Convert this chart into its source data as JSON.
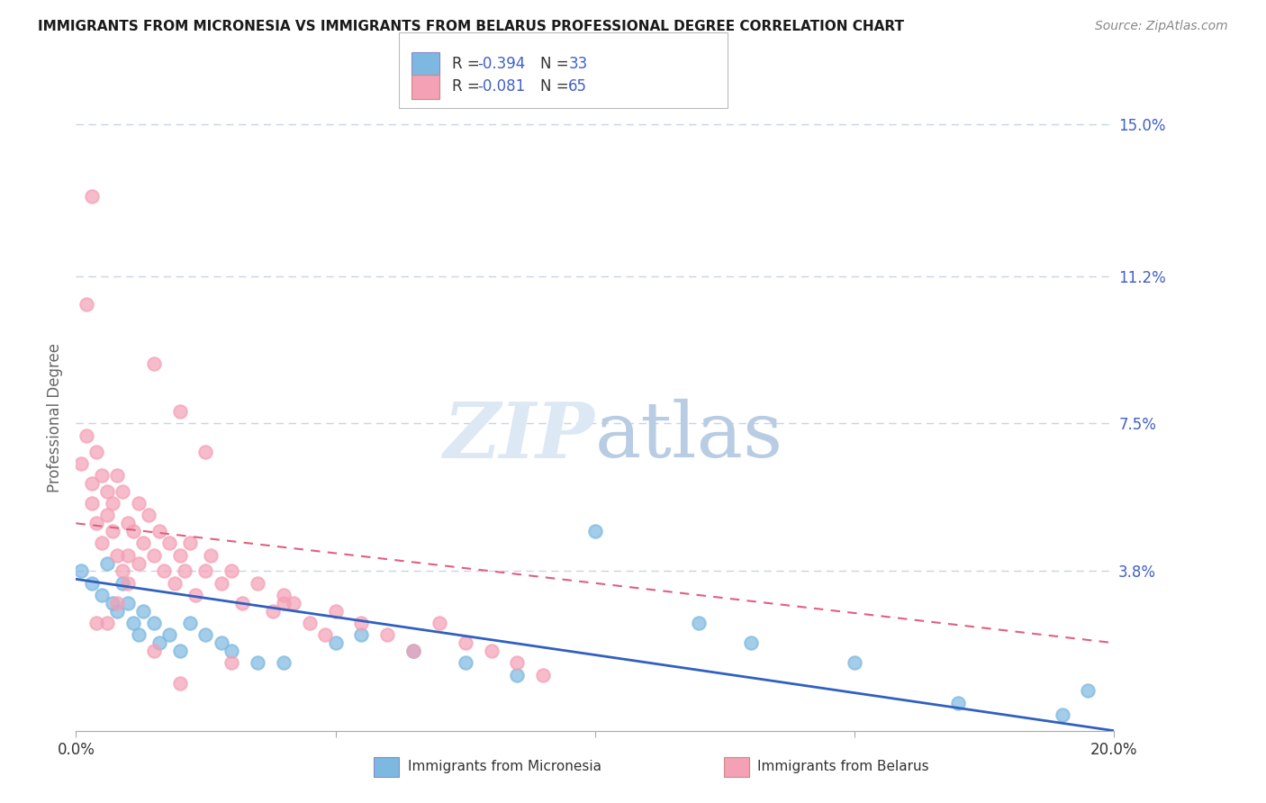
{
  "title": "IMMIGRANTS FROM MICRONESIA VS IMMIGRANTS FROM BELARUS PROFESSIONAL DEGREE CORRELATION CHART",
  "source": "Source: ZipAtlas.com",
  "ylabel": "Professional Degree",
  "legend_label1": "Immigrants from Micronesia",
  "legend_label2": "Immigrants from Belarus",
  "R1": -0.394,
  "N1": 33,
  "R2": -0.081,
  "N2": 65,
  "color1": "#7db8e0",
  "color2": "#f4a0b5",
  "trend_color1": "#3060c0",
  "trend_color2": "#e06080",
  "xmin": 0.0,
  "xmax": 0.2,
  "ymin": -0.002,
  "ymax": 0.155,
  "ytick_vals": [
    0.0,
    0.038,
    0.075,
    0.112,
    0.15
  ],
  "ytick_labels": [
    "",
    "3.8%",
    "7.5%",
    "11.2%",
    "15.0%"
  ],
  "xtick_vals": [
    0.0,
    0.2
  ],
  "xtick_labels": [
    "0.0%",
    "20.0%"
  ],
  "background_color": "#ffffff",
  "grid_color": "#c8d4e8",
  "blue_text": "#4060c8",
  "axis_text_color": "#333333",
  "watermark_color": "#dce8f4",
  "micronesia_x": [
    0.001,
    0.003,
    0.005,
    0.006,
    0.007,
    0.008,
    0.009,
    0.01,
    0.011,
    0.012,
    0.013,
    0.015,
    0.016,
    0.018,
    0.02,
    0.022,
    0.025,
    0.028,
    0.03,
    0.035,
    0.04,
    0.05,
    0.055,
    0.065,
    0.075,
    0.085,
    0.1,
    0.12,
    0.13,
    0.15,
    0.17,
    0.19,
    0.195
  ],
  "micronesia_y": [
    0.038,
    0.035,
    0.032,
    0.04,
    0.03,
    0.028,
    0.035,
    0.03,
    0.025,
    0.022,
    0.028,
    0.025,
    0.02,
    0.022,
    0.018,
    0.025,
    0.022,
    0.02,
    0.018,
    0.015,
    0.015,
    0.02,
    0.022,
    0.018,
    0.015,
    0.012,
    0.048,
    0.025,
    0.02,
    0.015,
    0.005,
    0.002,
    0.008
  ],
  "belarus_x": [
    0.001,
    0.002,
    0.003,
    0.003,
    0.004,
    0.004,
    0.005,
    0.005,
    0.006,
    0.006,
    0.007,
    0.007,
    0.008,
    0.008,
    0.009,
    0.009,
    0.01,
    0.01,
    0.011,
    0.012,
    0.012,
    0.013,
    0.014,
    0.015,
    0.016,
    0.017,
    0.018,
    0.019,
    0.02,
    0.021,
    0.022,
    0.023,
    0.025,
    0.026,
    0.028,
    0.03,
    0.032,
    0.035,
    0.038,
    0.04,
    0.042,
    0.045,
    0.048,
    0.05,
    0.055,
    0.06,
    0.065,
    0.07,
    0.075,
    0.08,
    0.085,
    0.09,
    0.04,
    0.03,
    0.02,
    0.015,
    0.01,
    0.008,
    0.006,
    0.004,
    0.003,
    0.002,
    0.015,
    0.02,
    0.025
  ],
  "belarus_y": [
    0.065,
    0.072,
    0.06,
    0.055,
    0.068,
    0.05,
    0.062,
    0.045,
    0.058,
    0.052,
    0.055,
    0.048,
    0.062,
    0.042,
    0.058,
    0.038,
    0.05,
    0.042,
    0.048,
    0.055,
    0.04,
    0.045,
    0.052,
    0.042,
    0.048,
    0.038,
    0.045,
    0.035,
    0.042,
    0.038,
    0.045,
    0.032,
    0.038,
    0.042,
    0.035,
    0.038,
    0.03,
    0.035,
    0.028,
    0.032,
    0.03,
    0.025,
    0.022,
    0.028,
    0.025,
    0.022,
    0.018,
    0.025,
    0.02,
    0.018,
    0.015,
    0.012,
    0.03,
    0.015,
    0.01,
    0.018,
    0.035,
    0.03,
    0.025,
    0.025,
    0.132,
    0.105,
    0.09,
    0.078,
    0.068
  ],
  "trend1_x0": 0.0,
  "trend1_y0": 0.036,
  "trend1_x1": 0.2,
  "trend1_y1": -0.002,
  "trend2_x0": 0.0,
  "trend2_y0": 0.05,
  "trend2_x1": 0.2,
  "trend2_y1": 0.02
}
